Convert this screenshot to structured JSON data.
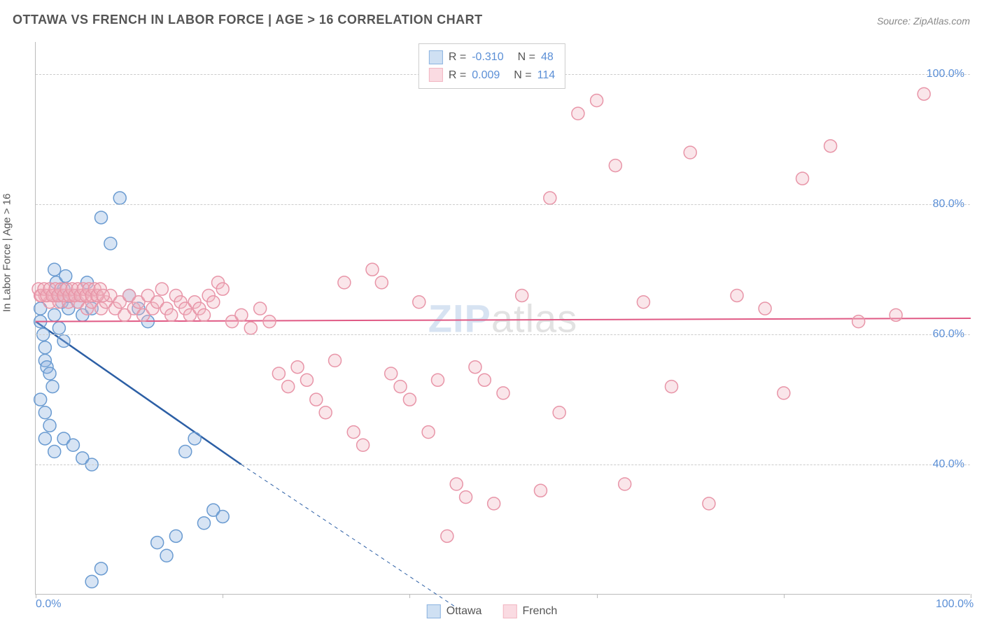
{
  "title": "OTTAWA VS FRENCH IN LABOR FORCE | AGE > 16 CORRELATION CHART",
  "source_label": "Source: ZipAtlas.com",
  "watermark": {
    "bold": "ZIP",
    "rest": "atlas"
  },
  "y_axis_label": "In Labor Force | Age > 16",
  "chart": {
    "type": "scatter",
    "background_color": "#ffffff",
    "grid_color": "#cccccc",
    "axis_color": "#bbbbbb",
    "xlim": [
      0,
      100
    ],
    "ylim": [
      20,
      105
    ],
    "x_ticks": [
      0,
      20,
      40,
      60,
      80,
      100
    ],
    "x_tick_labels": [
      "0.0%",
      "",
      "",
      "",
      "",
      "100.0%"
    ],
    "y_ticks": [
      40,
      60,
      80,
      100
    ],
    "y_tick_labels": [
      "40.0%",
      "60.0%",
      "80.0%",
      "100.0%"
    ],
    "marker_radius": 9,
    "marker_stroke_width": 1.5,
    "marker_fill_opacity": 0.35,
    "series": [
      {
        "name": "Ottawa",
        "color": "#8bb3e0",
        "stroke": "#6a9bd1",
        "R": "-0.310",
        "N": "48",
        "points": [
          [
            0.5,
            64
          ],
          [
            0.5,
            62
          ],
          [
            0.8,
            60
          ],
          [
            1,
            58
          ],
          [
            1,
            56
          ],
          [
            1.2,
            55
          ],
          [
            1.5,
            54
          ],
          [
            1.8,
            52
          ],
          [
            0.5,
            50
          ],
          [
            2,
            70
          ],
          [
            2.2,
            68
          ],
          [
            2.5,
            66
          ],
          [
            2.8,
            65
          ],
          [
            3,
            67
          ],
          [
            3.2,
            69
          ],
          [
            1,
            48
          ],
          [
            1.5,
            46
          ],
          [
            2,
            63
          ],
          [
            2.5,
            61
          ],
          [
            3,
            59
          ],
          [
            3.5,
            64
          ],
          [
            4,
            66
          ],
          [
            4.5,
            65
          ],
          [
            5,
            63
          ],
          [
            5.5,
            68
          ],
          [
            6,
            64
          ],
          [
            1,
            44
          ],
          [
            2,
            42
          ],
          [
            3,
            44
          ],
          [
            4,
            43
          ],
          [
            5,
            41
          ],
          [
            6,
            40
          ],
          [
            7,
            78
          ],
          [
            8,
            74
          ],
          [
            9,
            81
          ],
          [
            10,
            66
          ],
          [
            11,
            64
          ],
          [
            12,
            62
          ],
          [
            13,
            28
          ],
          [
            14,
            26
          ],
          [
            15,
            29
          ],
          [
            16,
            42
          ],
          [
            17,
            44
          ],
          [
            18,
            31
          ],
          [
            19,
            33
          ],
          [
            20,
            32
          ],
          [
            6,
            22
          ],
          [
            7,
            24
          ]
        ],
        "trend": {
          "x1": 0,
          "y1": 62,
          "x2": 22,
          "y2": 40,
          "dash_to_x": 45,
          "dash_to_y": 18,
          "color": "#2c5fa5",
          "width": 2.5
        }
      },
      {
        "name": "French",
        "color": "#f2b6c2",
        "stroke": "#e895a8",
        "R": "0.009",
        "N": "114",
        "points": [
          [
            0.5,
            66
          ],
          [
            1,
            66
          ],
          [
            1.5,
            65
          ],
          [
            2,
            66
          ],
          [
            2.5,
            65
          ],
          [
            3,
            66
          ],
          [
            3.5,
            65
          ],
          [
            4,
            66
          ],
          [
            4.5,
            65
          ],
          [
            5,
            66
          ],
          [
            5.5,
            64
          ],
          [
            6,
            65
          ],
          [
            6.5,
            66
          ],
          [
            7,
            64
          ],
          [
            7.5,
            65
          ],
          [
            8,
            66
          ],
          [
            8.5,
            64
          ],
          [
            9,
            65
          ],
          [
            9.5,
            63
          ],
          [
            10,
            66
          ],
          [
            10.5,
            64
          ],
          [
            11,
            65
          ],
          [
            11.5,
            63
          ],
          [
            12,
            66
          ],
          [
            12.5,
            64
          ],
          [
            13,
            65
          ],
          [
            13.5,
            67
          ],
          [
            14,
            64
          ],
          [
            14.5,
            63
          ],
          [
            15,
            66
          ],
          [
            15.5,
            65
          ],
          [
            16,
            64
          ],
          [
            16.5,
            63
          ],
          [
            17,
            65
          ],
          [
            17.5,
            64
          ],
          [
            18,
            63
          ],
          [
            18.5,
            66
          ],
          [
            19,
            65
          ],
          [
            19.5,
            68
          ],
          [
            20,
            67
          ],
          [
            21,
            62
          ],
          [
            22,
            63
          ],
          [
            23,
            61
          ],
          [
            24,
            64
          ],
          [
            25,
            62
          ],
          [
            26,
            54
          ],
          [
            27,
            52
          ],
          [
            28,
            55
          ],
          [
            29,
            53
          ],
          [
            30,
            50
          ],
          [
            31,
            48
          ],
          [
            32,
            56
          ],
          [
            33,
            68
          ],
          [
            34,
            45
          ],
          [
            35,
            43
          ],
          [
            36,
            70
          ],
          [
            37,
            68
          ],
          [
            38,
            54
          ],
          [
            39,
            52
          ],
          [
            40,
            50
          ],
          [
            41,
            65
          ],
          [
            42,
            45
          ],
          [
            43,
            53
          ],
          [
            44,
            29
          ],
          [
            45,
            37
          ],
          [
            46,
            35
          ],
          [
            47,
            55
          ],
          [
            48,
            53
          ],
          [
            49,
            34
          ],
          [
            50,
            51
          ],
          [
            52,
            66
          ],
          [
            54,
            36
          ],
          [
            55,
            81
          ],
          [
            56,
            48
          ],
          [
            58,
            94
          ],
          [
            60,
            96
          ],
          [
            62,
            86
          ],
          [
            63,
            37
          ],
          [
            65,
            65
          ],
          [
            68,
            52
          ],
          [
            70,
            88
          ],
          [
            72,
            34
          ],
          [
            75,
            66
          ],
          [
            78,
            64
          ],
          [
            80,
            51
          ],
          [
            82,
            84
          ],
          [
            85,
            89
          ],
          [
            88,
            62
          ],
          [
            92,
            63
          ],
          [
            95,
            97
          ],
          [
            0.3,
            67
          ],
          [
            0.6,
            66
          ],
          [
            0.9,
            67
          ],
          [
            1.2,
            66
          ],
          [
            1.5,
            67
          ],
          [
            1.8,
            66
          ],
          [
            2.1,
            67
          ],
          [
            2.4,
            66
          ],
          [
            2.7,
            67
          ],
          [
            3.0,
            66
          ],
          [
            3.3,
            67
          ],
          [
            3.6,
            66
          ],
          [
            3.9,
            67
          ],
          [
            4.2,
            66
          ],
          [
            4.5,
            67
          ],
          [
            4.8,
            66
          ],
          [
            5.1,
            67
          ],
          [
            5.4,
            66
          ],
          [
            5.7,
            67
          ],
          [
            6.0,
            66
          ],
          [
            6.3,
            67
          ],
          [
            6.6,
            66
          ],
          [
            6.9,
            67
          ],
          [
            7.2,
            66
          ]
        ],
        "trend": {
          "x1": 0,
          "y1": 62,
          "x2": 100,
          "y2": 62.5,
          "color": "#e05a85",
          "width": 2
        }
      }
    ]
  },
  "legend_box": {
    "rows": [
      {
        "swatch_fill": "#cfe0f3",
        "swatch_border": "#8bb3e0",
        "r_label": "R =",
        "r_val": "-0.310",
        "n_label": "N =",
        "n_val": "48"
      },
      {
        "swatch_fill": "#fadbe2",
        "swatch_border": "#f2b6c2",
        "r_label": "R =",
        "r_val": "0.009",
        "n_label": "N =",
        "n_val": "114"
      }
    ]
  },
  "bottom_legend": [
    {
      "swatch_fill": "#cfe0f3",
      "swatch_border": "#8bb3e0",
      "label": "Ottawa"
    },
    {
      "swatch_fill": "#fadbe2",
      "swatch_border": "#f2b6c2",
      "label": "French"
    }
  ],
  "label_color": "#5b8fd6",
  "text_color": "#555555"
}
